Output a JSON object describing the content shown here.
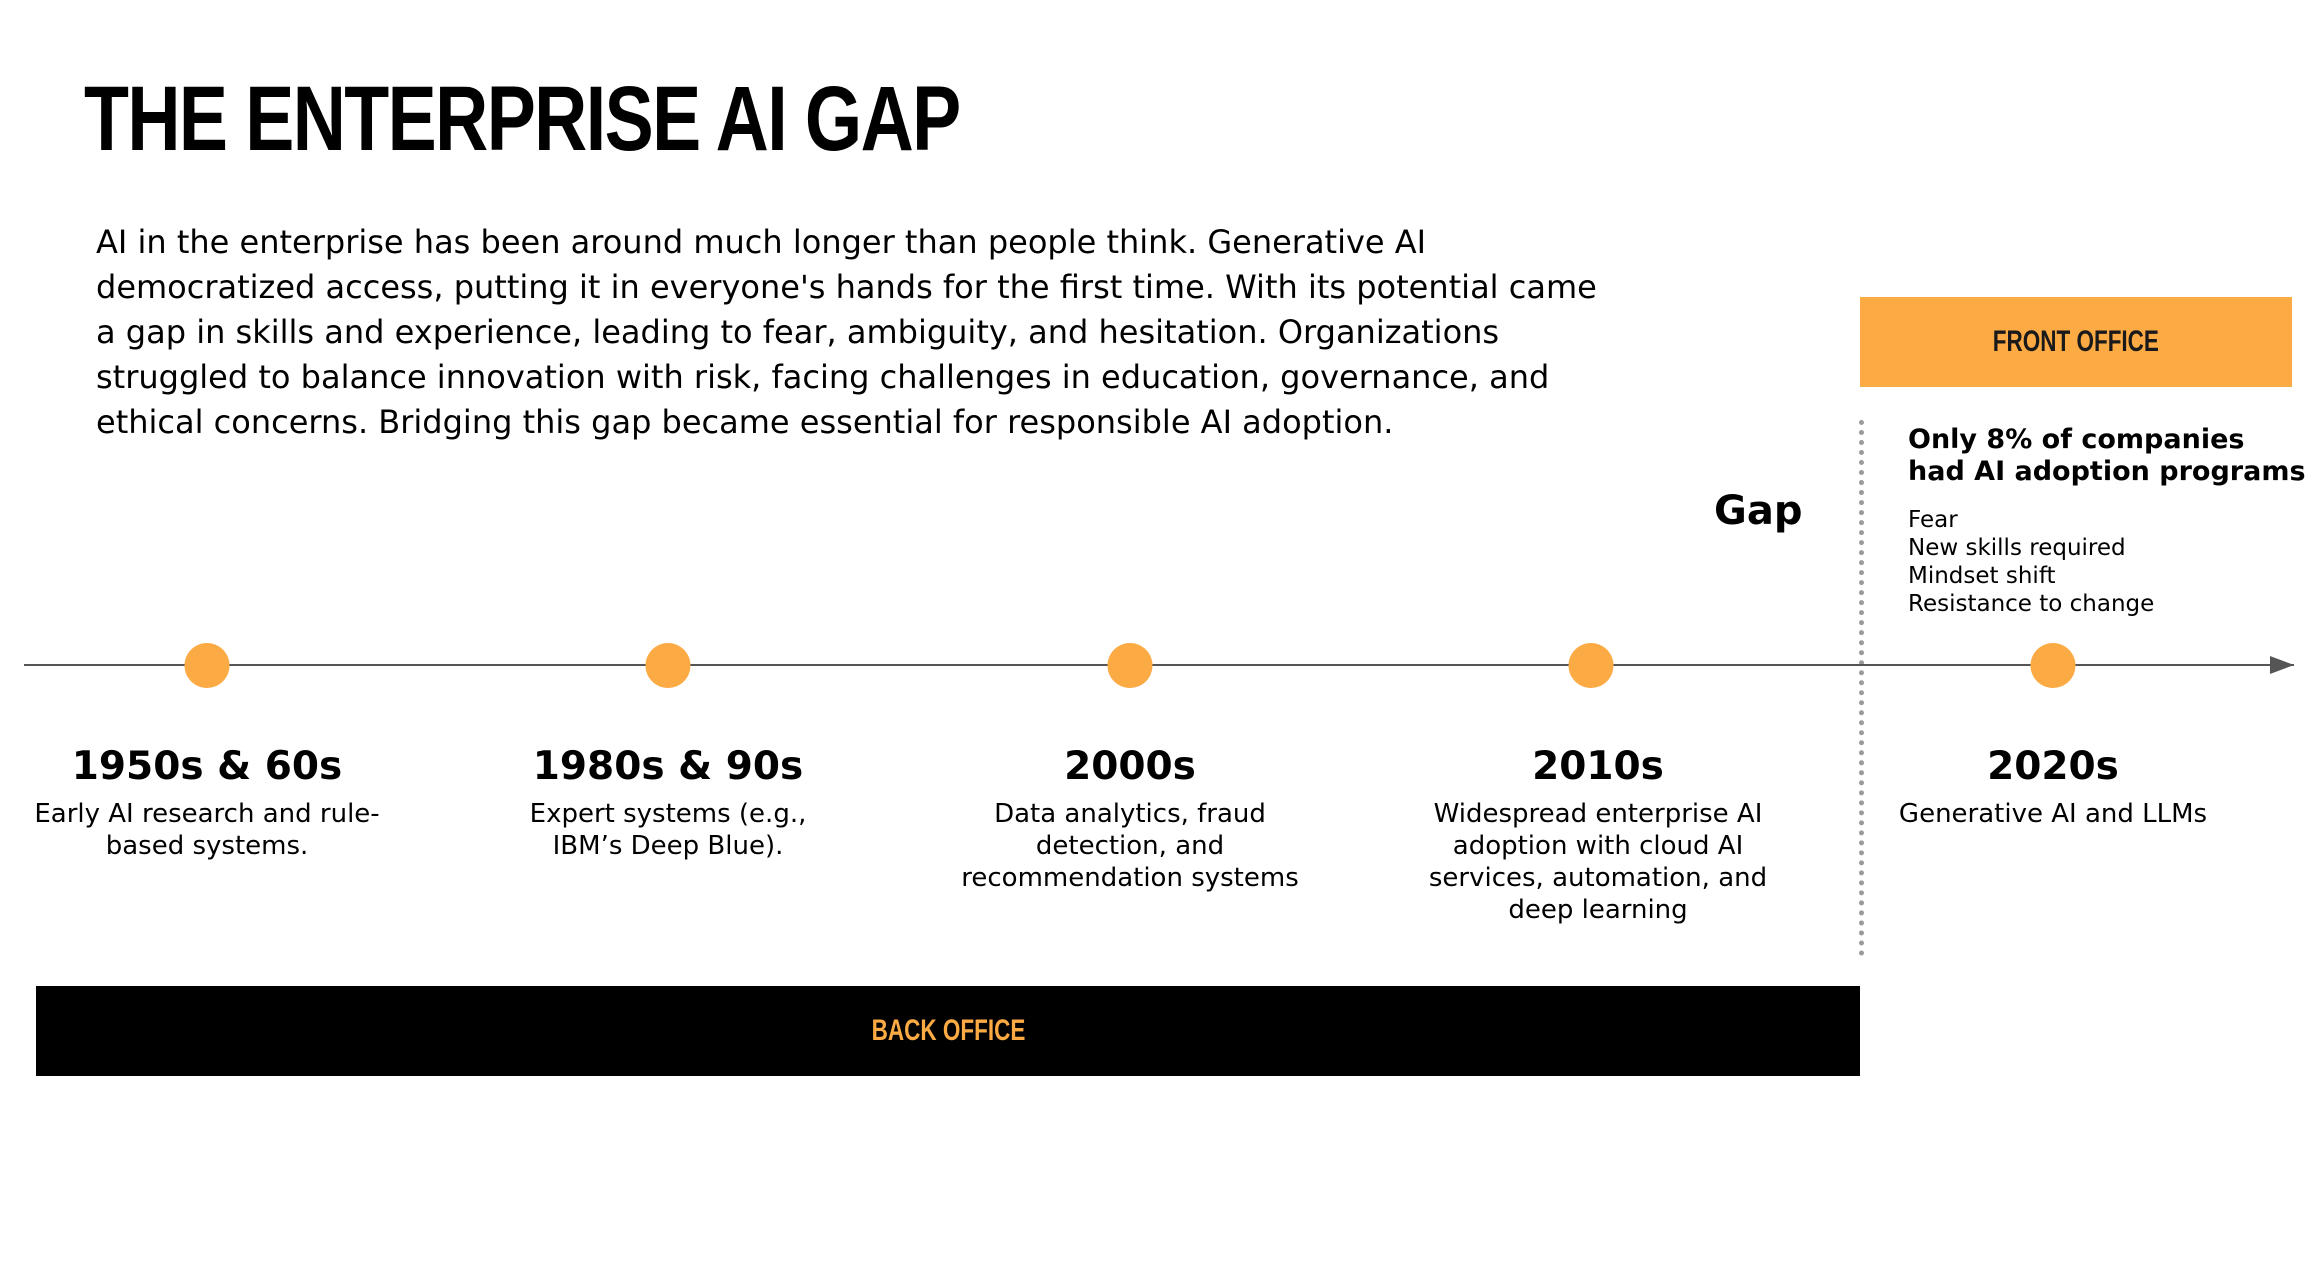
{
  "header": {
    "title": "THE ENTERPRISE AI GAP",
    "intro": "AI in the enterprise has been around much longer than people think. Generative AI democratized access, putting it in everyone's hands for the first time. With its potential came a gap in skills and experience, leading to fear, ambiguity, and hesitation. Organizations struggled to balance innovation with risk, facing challenges in education, governance, and ethical concerns. Bridging this gap became essential for responsible AI adoption."
  },
  "timeline": {
    "eras": [
      {
        "label": "1950s & 60s",
        "description": "Early AI research and rule-based systems."
      },
      {
        "label": "1980s & 90s",
        "description": "Expert systems (e.g., IBM’s Deep Blue)."
      },
      {
        "label": "2000s",
        "description": "Data analytics, fraud detection, and recommendation systems"
      },
      {
        "label": "2010s",
        "description": "Widespread enterprise AI adoption with cloud AI services, automation, and deep learning"
      },
      {
        "label": "2020s",
        "description": "Generative AI and LLMs"
      }
    ],
    "gap_label": "Gap"
  },
  "front_office": {
    "label": "FRONT OFFICE",
    "stat": "Only 8% of companies had AI adoption programs",
    "challenges": [
      "Fear",
      "New skills required",
      "Mindset shift",
      "Resistance to change"
    ]
  },
  "back_office": {
    "label": "BACK OFFICE"
  },
  "colors": {
    "accent": "#FCAA43",
    "dark": "#000000",
    "axis": "#555555"
  }
}
